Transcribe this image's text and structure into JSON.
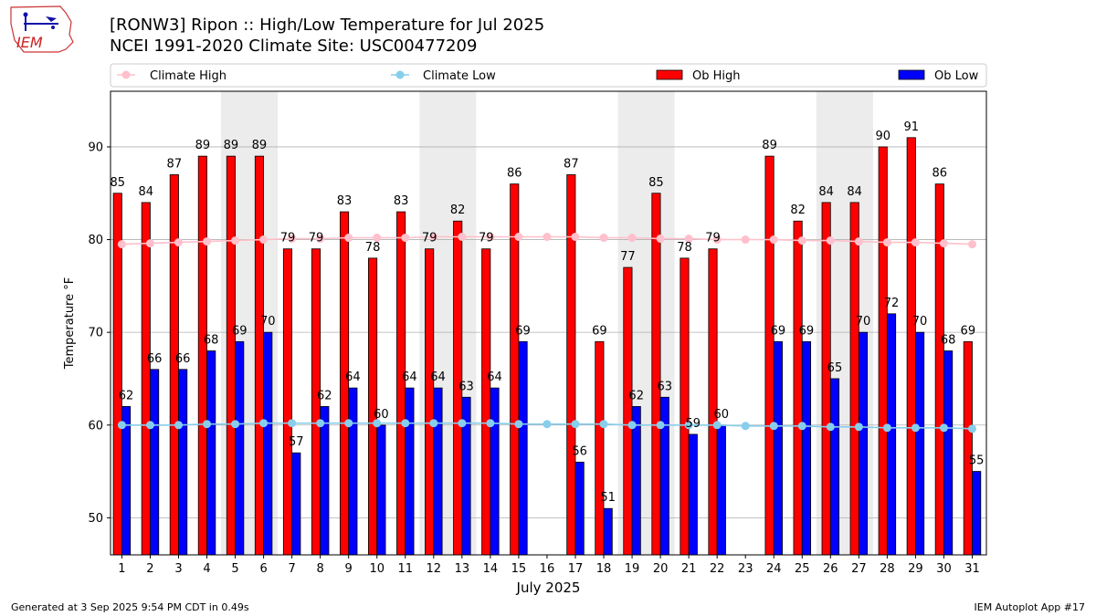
{
  "title": {
    "line1": "[RONW3] Ripon :: High/Low Temperature for Jul 2025",
    "line2": "NCEI 1991-2020 Climate Site: USC00477209"
  },
  "logo_text": "IEM",
  "footer": {
    "left": "Generated at 3 Sep 2025 9:54 PM CDT in 0.49s",
    "right": "IEM Autoplot App #17"
  },
  "colors": {
    "ob_high": "#ff0000",
    "ob_low": "#0000ff",
    "climate_high": "#ffc0cb",
    "climate_low": "#87ceeb",
    "weekend_band": "#ececec",
    "grid": "#b0b0b0"
  },
  "chart_data": {
    "type": "bar",
    "xlabel": "July 2025",
    "ylabel": "Temperature °F",
    "ylim": [
      46,
      96
    ],
    "yticks": [
      50,
      60,
      70,
      80,
      90
    ],
    "xlim": [
      0.6,
      31.5
    ],
    "grid": "horizontal",
    "legend_placement": "top",
    "categories": [
      "1",
      "2",
      "3",
      "4",
      "5",
      "6",
      "7",
      "8",
      "9",
      "10",
      "11",
      "12",
      "13",
      "14",
      "15",
      "16",
      "17",
      "18",
      "19",
      "20",
      "21",
      "22",
      "23",
      "24",
      "25",
      "26",
      "27",
      "28",
      "29",
      "30",
      "31"
    ],
    "weekend_bands": [
      [
        5,
        6
      ],
      [
        12,
        13
      ],
      [
        19,
        20
      ],
      [
        26,
        27
      ]
    ],
    "series": [
      {
        "name": "Ob High",
        "kind": "bar",
        "values": [
          85,
          84,
          87,
          89,
          89,
          89,
          79,
          79,
          83,
          78,
          83,
          79,
          82,
          79,
          86,
          null,
          87,
          69,
          77,
          85,
          78,
          79,
          null,
          89,
          82,
          84,
          84,
          90,
          91,
          86,
          69
        ]
      },
      {
        "name": "Ob Low",
        "kind": "bar",
        "values": [
          62,
          66,
          66,
          68,
          69,
          70,
          57,
          62,
          64,
          60,
          64,
          64,
          63,
          64,
          69,
          null,
          56,
          51,
          62,
          63,
          59,
          60,
          null,
          69,
          69,
          65,
          70,
          72,
          70,
          68,
          55
        ]
      },
      {
        "name": "Climate High",
        "kind": "line",
        "values": [
          79.5,
          79.6,
          79.7,
          79.8,
          79.9,
          80.0,
          80.1,
          80.1,
          80.2,
          80.2,
          80.2,
          80.3,
          80.3,
          80.3,
          80.3,
          80.3,
          80.3,
          80.2,
          80.2,
          80.1,
          80.1,
          80.0,
          80.0,
          80.0,
          79.9,
          79.9,
          79.8,
          79.7,
          79.7,
          79.6,
          79.5
        ]
      },
      {
        "name": "Climate Low",
        "kind": "line",
        "values": [
          60.0,
          60.0,
          60.0,
          60.1,
          60.1,
          60.2,
          60.2,
          60.2,
          60.2,
          60.2,
          60.2,
          60.2,
          60.2,
          60.2,
          60.1,
          60.1,
          60.1,
          60.1,
          60.0,
          60.0,
          60.0,
          60.0,
          59.9,
          59.9,
          59.9,
          59.8,
          59.8,
          59.7,
          59.7,
          59.7,
          59.6
        ]
      }
    ]
  }
}
